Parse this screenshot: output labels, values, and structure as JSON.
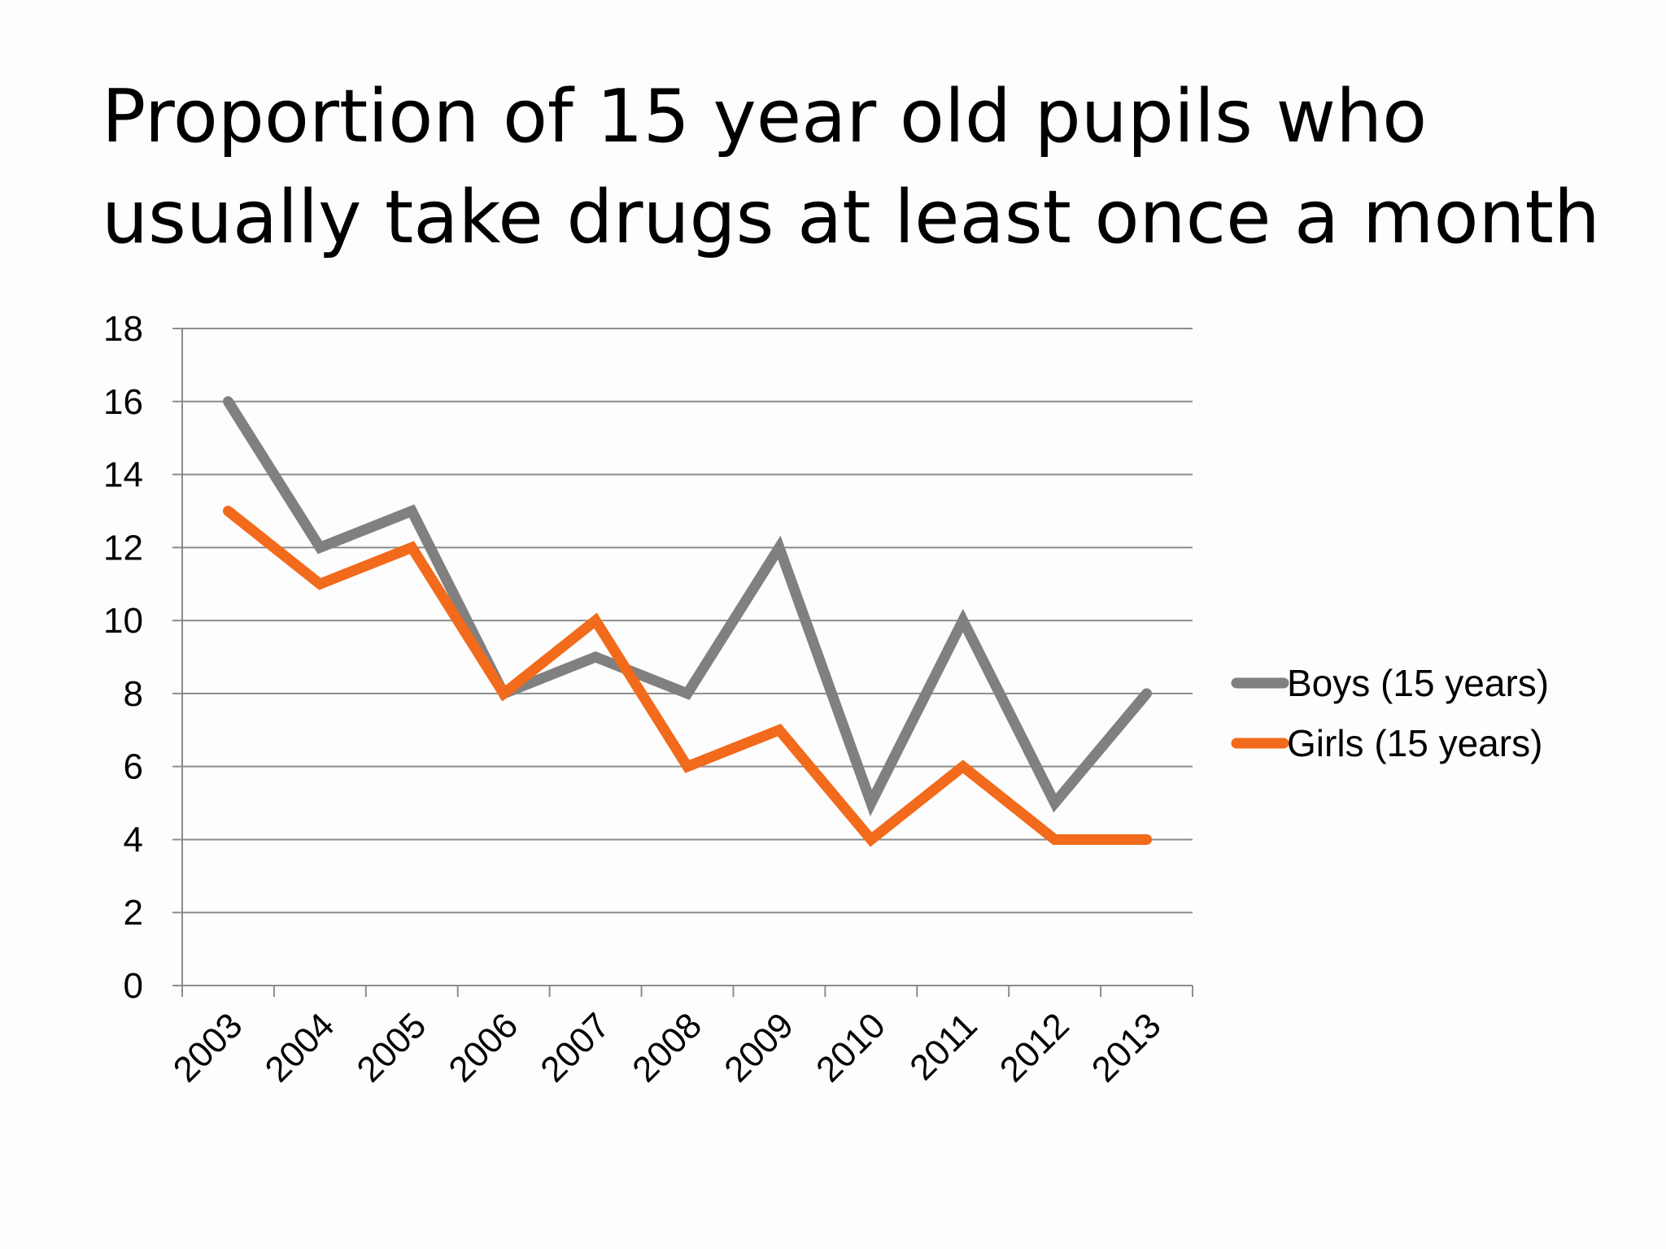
{
  "slide": {
    "title_line1": "Proportion of 15 year old pupils who",
    "title_line2": "usually take drugs at least once a month"
  },
  "chart_data": {
    "type": "line",
    "x": [
      "2003",
      "2004",
      "2005",
      "2006",
      "2007",
      "2008",
      "2009",
      "2010",
      "2011",
      "2012",
      "2013"
    ],
    "series": [
      {
        "name": "Boys (15 years)",
        "color": "#808080",
        "values": [
          16,
          12,
          13,
          8,
          9,
          8,
          12,
          5,
          10,
          5,
          8
        ]
      },
      {
        "name": "Girls (15 years)",
        "color": "#f26a1b",
        "values": [
          13,
          11,
          12,
          8,
          10,
          6,
          7,
          4,
          6,
          4,
          4
        ]
      }
    ],
    "yticks": [
      "0",
      "2",
      "4",
      "6",
      "8",
      "10",
      "12",
      "14",
      "16",
      "18"
    ],
    "ylim": [
      0,
      18
    ],
    "grid": true,
    "legend": "right"
  }
}
